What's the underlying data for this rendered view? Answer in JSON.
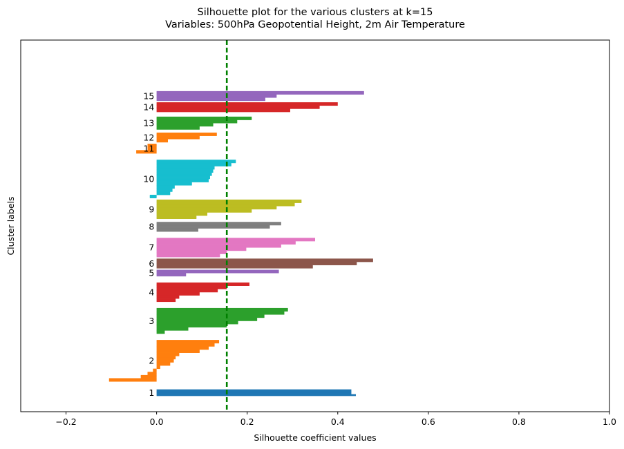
{
  "chart_data": {
    "type": "bar",
    "orientation": "horizontal",
    "title": "Silhouette plot for the various clusters at k=15",
    "subtitle": "Variables: 500hPa Geopotential Height, 2m Air Temperature",
    "xlabel": "Silhouette coefficient values",
    "ylabel": "Cluster labels",
    "xlim": [
      -0.3,
      1.0
    ],
    "xticks": [
      -0.2,
      0.0,
      0.2,
      0.4,
      0.6,
      0.8,
      1.0
    ],
    "xtick_labels": [
      "−0.2",
      "0.0",
      "0.2",
      "0.4",
      "0.6",
      "0.8",
      "1.0"
    ],
    "ylim": [
      0,
      233
    ],
    "grid": false,
    "average_silhouette": 0.155,
    "average_line_color": "#008000",
    "average_line_style": "dashed",
    "clusters": [
      {
        "label": "1",
        "color": "#1f77b4",
        "y_start": 10,
        "values": [
          0.44,
          0.43,
          0.43,
          0.43
        ]
      },
      {
        "label": "2",
        "color": "#ff7f0e",
        "y_start": 19,
        "values": [
          -0.105,
          -0.105,
          -0.035,
          -0.035,
          -0.02,
          -0.02,
          -0.008,
          -0.008,
          0.008,
          0.008,
          0.03,
          0.03,
          0.038,
          0.038,
          0.042,
          0.042,
          0.05,
          0.05,
          0.095,
          0.095,
          0.115,
          0.115,
          0.128,
          0.128,
          0.138,
          0.138
        ]
      },
      {
        "label": "3",
        "color": "#2ca02c",
        "y_start": 49,
        "values": [
          0.018,
          0.018,
          0.07,
          0.07,
          0.155,
          0.155,
          0.18,
          0.18,
          0.222,
          0.222,
          0.238,
          0.238,
          0.282,
          0.282,
          0.29,
          0.29
        ]
      },
      {
        "label": "4",
        "color": "#d62728",
        "y_start": 69,
        "values": [
          0.042,
          0.042,
          0.05,
          0.05,
          0.095,
          0.095,
          0.135,
          0.135,
          0.155,
          0.155,
          0.205,
          0.205
        ]
      },
      {
        "label": "5",
        "color": "#9467bd",
        "y_start": 85,
        "values": [
          0.065,
          0.065,
          0.27,
          0.27
        ]
      },
      {
        "label": "6",
        "color": "#8c564b",
        "y_start": 90,
        "values": [
          0.345,
          0.345,
          0.442,
          0.442,
          0.478,
          0.478
        ]
      },
      {
        "label": "7",
        "color": "#e377c2",
        "y_start": 97,
        "values": [
          0.14,
          0.14,
          0.155,
          0.155,
          0.198,
          0.198,
          0.275,
          0.275,
          0.307,
          0.307,
          0.35,
          0.35
        ]
      },
      {
        "label": "8",
        "color": "#7f7f7f",
        "y_start": 113,
        "values": [
          0.092,
          0.092,
          0.25,
          0.25,
          0.275,
          0.275
        ]
      },
      {
        "label": "9",
        "color": "#bcbd22",
        "y_start": 121,
        "values": [
          0.088,
          0.088,
          0.112,
          0.112,
          0.21,
          0.21,
          0.265,
          0.265,
          0.305,
          0.305,
          0.32,
          0.32
        ]
      },
      {
        "label": "10",
        "color": "#17becf",
        "y_start": 134,
        "values": [
          -0.015,
          -0.015,
          0.03,
          0.03,
          0.035,
          0.035,
          0.04,
          0.04,
          0.078,
          0.078,
          0.115,
          0.115,
          0.118,
          0.118,
          0.122,
          0.122,
          0.125,
          0.125,
          0.128,
          0.128,
          0.165,
          0.165,
          0.175,
          0.175
        ]
      },
      {
        "label": "11",
        "color": "#ff7f0e",
        "y_start": 162,
        "values": [
          -0.045,
          -0.045,
          -0.02,
          -0.02,
          -0.02,
          -0.02
        ]
      },
      {
        "label": "12",
        "color": "#ff7f0e",
        "y_start": 169,
        "values": [
          0.025,
          0.025,
          0.095,
          0.095,
          0.133,
          0.133
        ]
      },
      {
        "label": "13",
        "color": "#2ca02c",
        "y_start": 177,
        "values": [
          0.095,
          0.095,
          0.125,
          0.125,
          0.178,
          0.178,
          0.21,
          0.21
        ]
      },
      {
        "label": "14",
        "color": "#d62728",
        "y_start": 188,
        "values": [
          0.295,
          0.295,
          0.36,
          0.36,
          0.4,
          0.4
        ]
      },
      {
        "label": "15",
        "color": "#9467bd",
        "y_start": 195,
        "values": [
          0.24,
          0.24,
          0.265,
          0.265,
          0.458,
          0.458
        ]
      }
    ]
  }
}
